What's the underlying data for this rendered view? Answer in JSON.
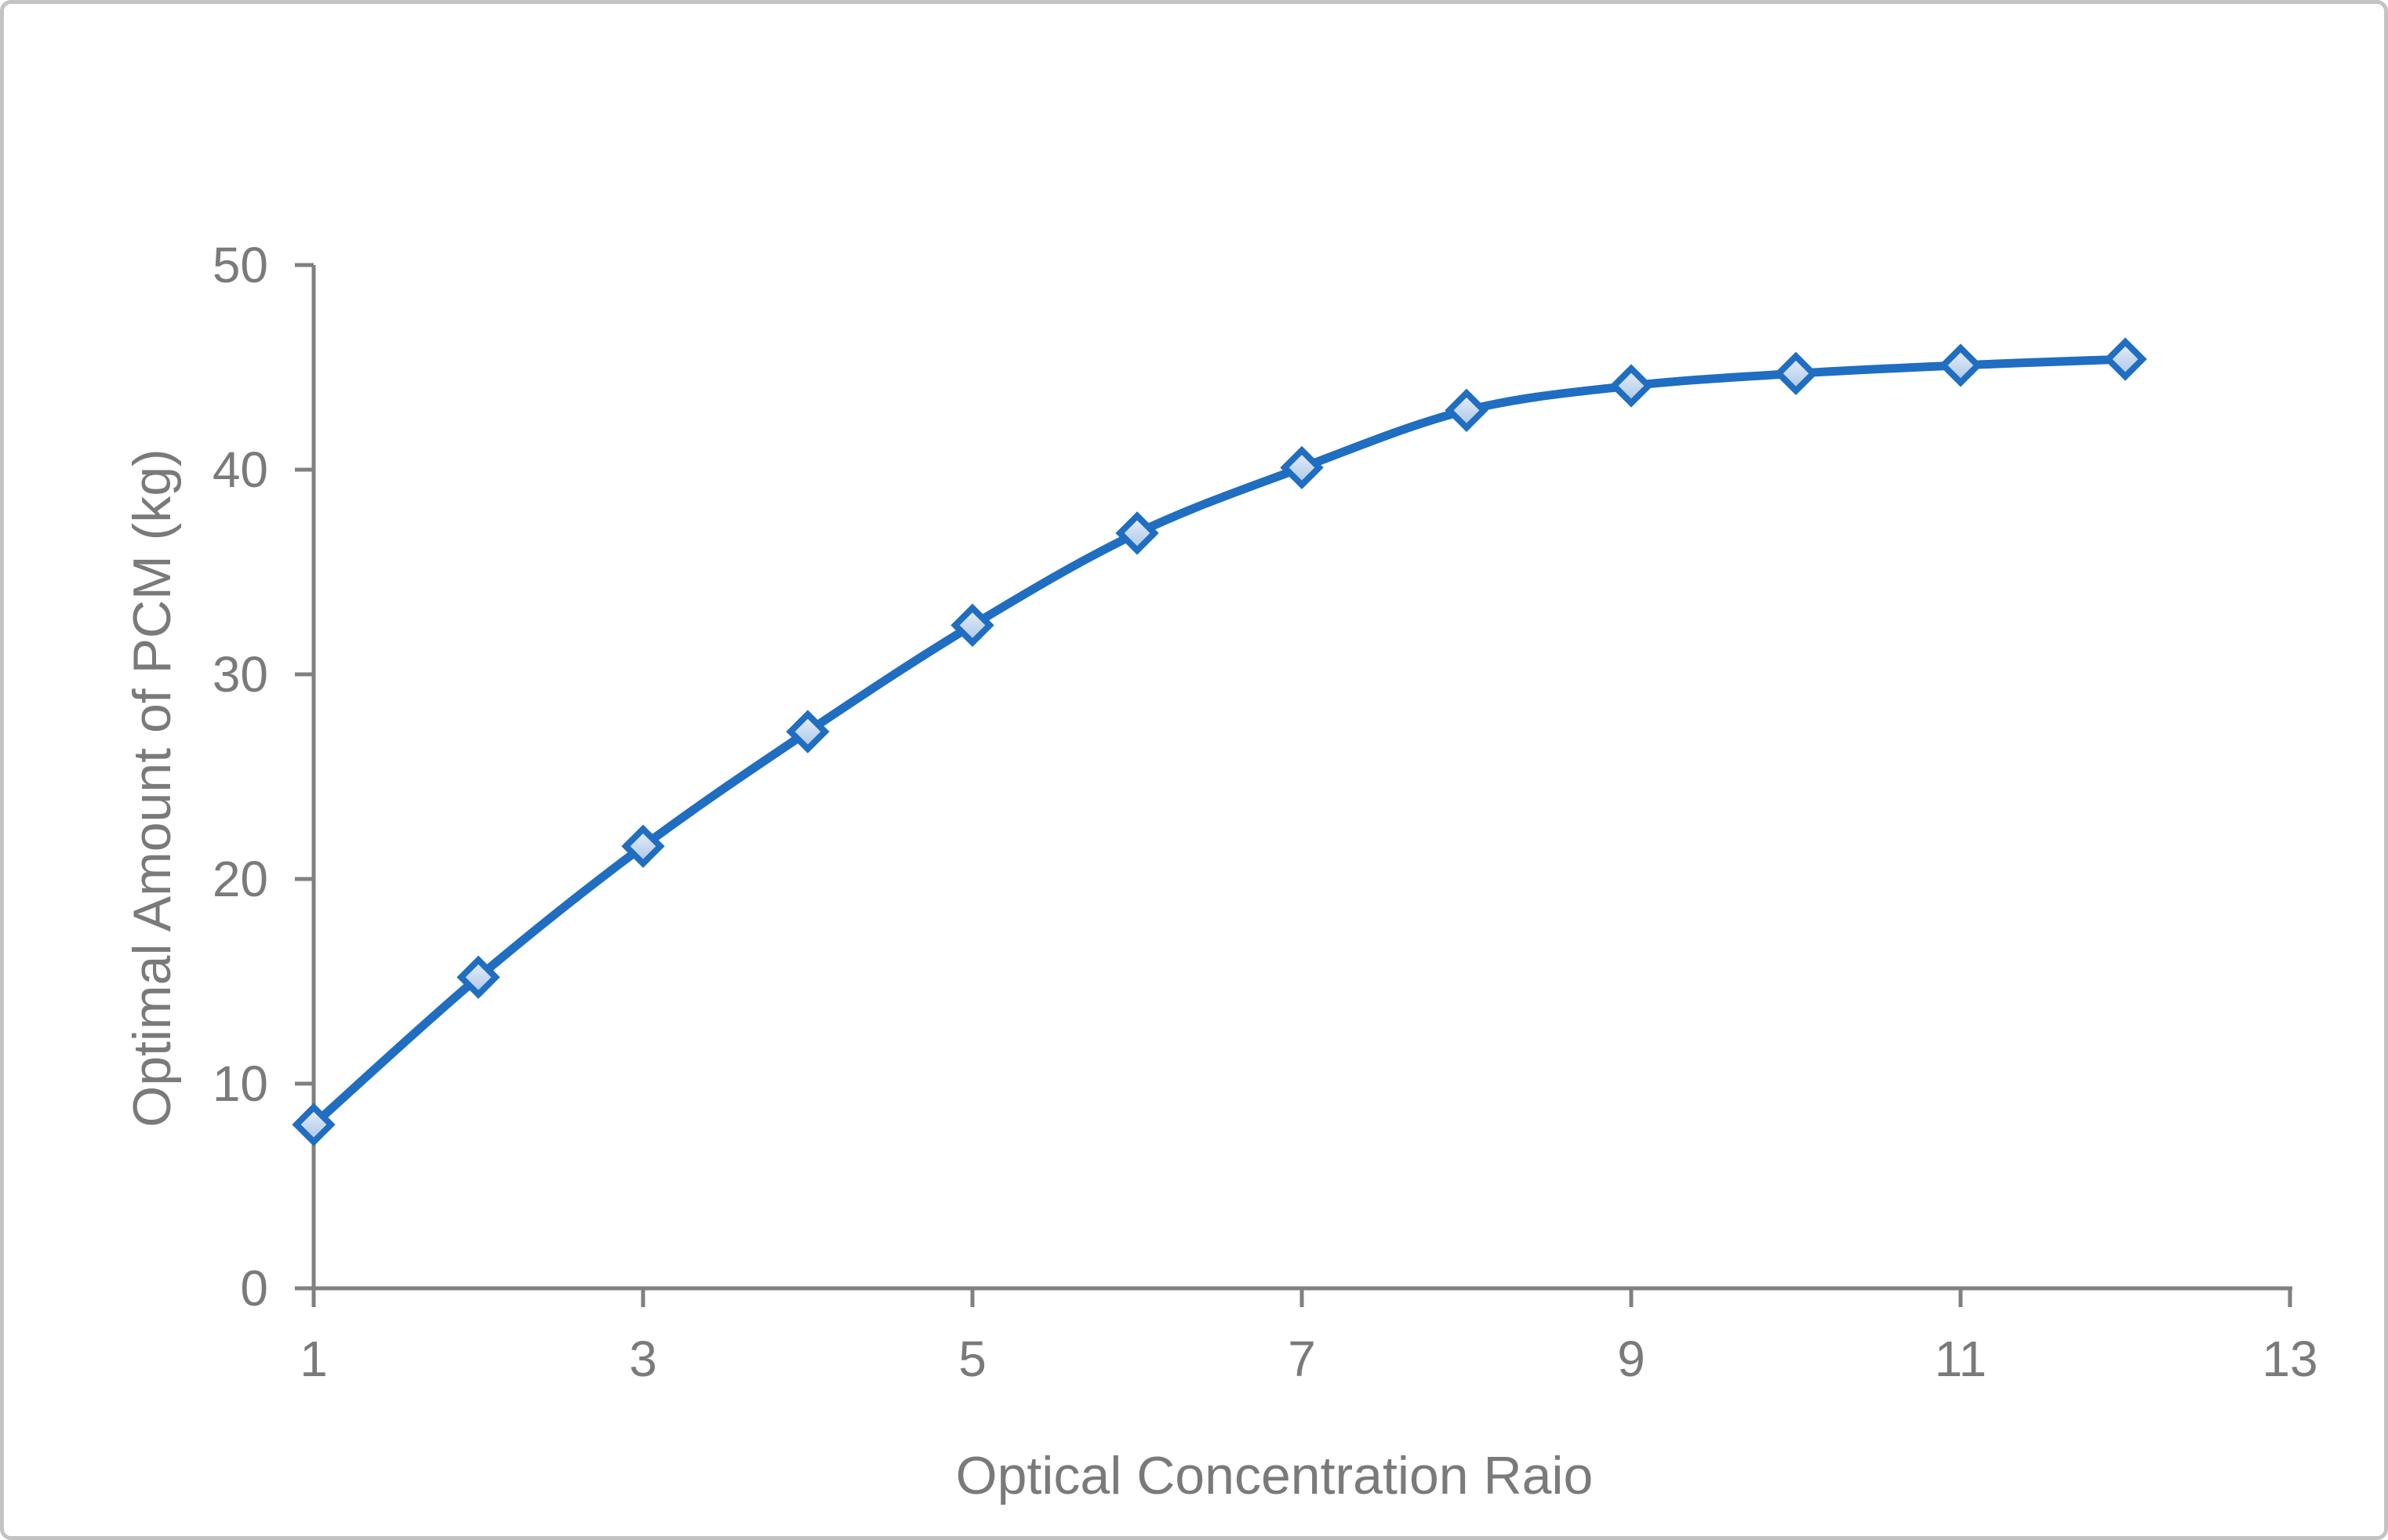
{
  "chart_data": {
    "type": "line",
    "title": "",
    "xlabel": "Optical Concentration Raio",
    "ylabel": "Optimal Amount of PCM (kg)",
    "x": [
      1,
      2,
      3,
      4,
      5,
      6,
      7,
      8,
      9,
      10,
      11,
      12
    ],
    "series": [
      {
        "name": "Optimal amount of PCM",
        "values": [
          8.0,
          15.2,
          21.6,
          27.2,
          32.4,
          36.9,
          40.1,
          42.9,
          44.1,
          44.7,
          45.1,
          45.4
        ]
      }
    ],
    "xlim": [
      1,
      13
    ],
    "ylim": [
      0,
      50
    ],
    "x_ticks": [
      1,
      3,
      5,
      7,
      9,
      11,
      13
    ],
    "y_ticks": [
      0,
      10,
      20,
      30,
      40,
      50
    ],
    "grid": false,
    "legend_position": "none",
    "marker_shape": "diamond",
    "line_smooth": true,
    "colors": {
      "line": "#1f6ec1",
      "marker_border": "#1f6ec1",
      "marker_fill_top": "#e9f0f9",
      "marker_fill_bottom": "#a9c5e8",
      "axis": "#808080",
      "text": "#7a7a7a",
      "frame_border": "#c3c3c3",
      "background": "#ffffff"
    }
  }
}
